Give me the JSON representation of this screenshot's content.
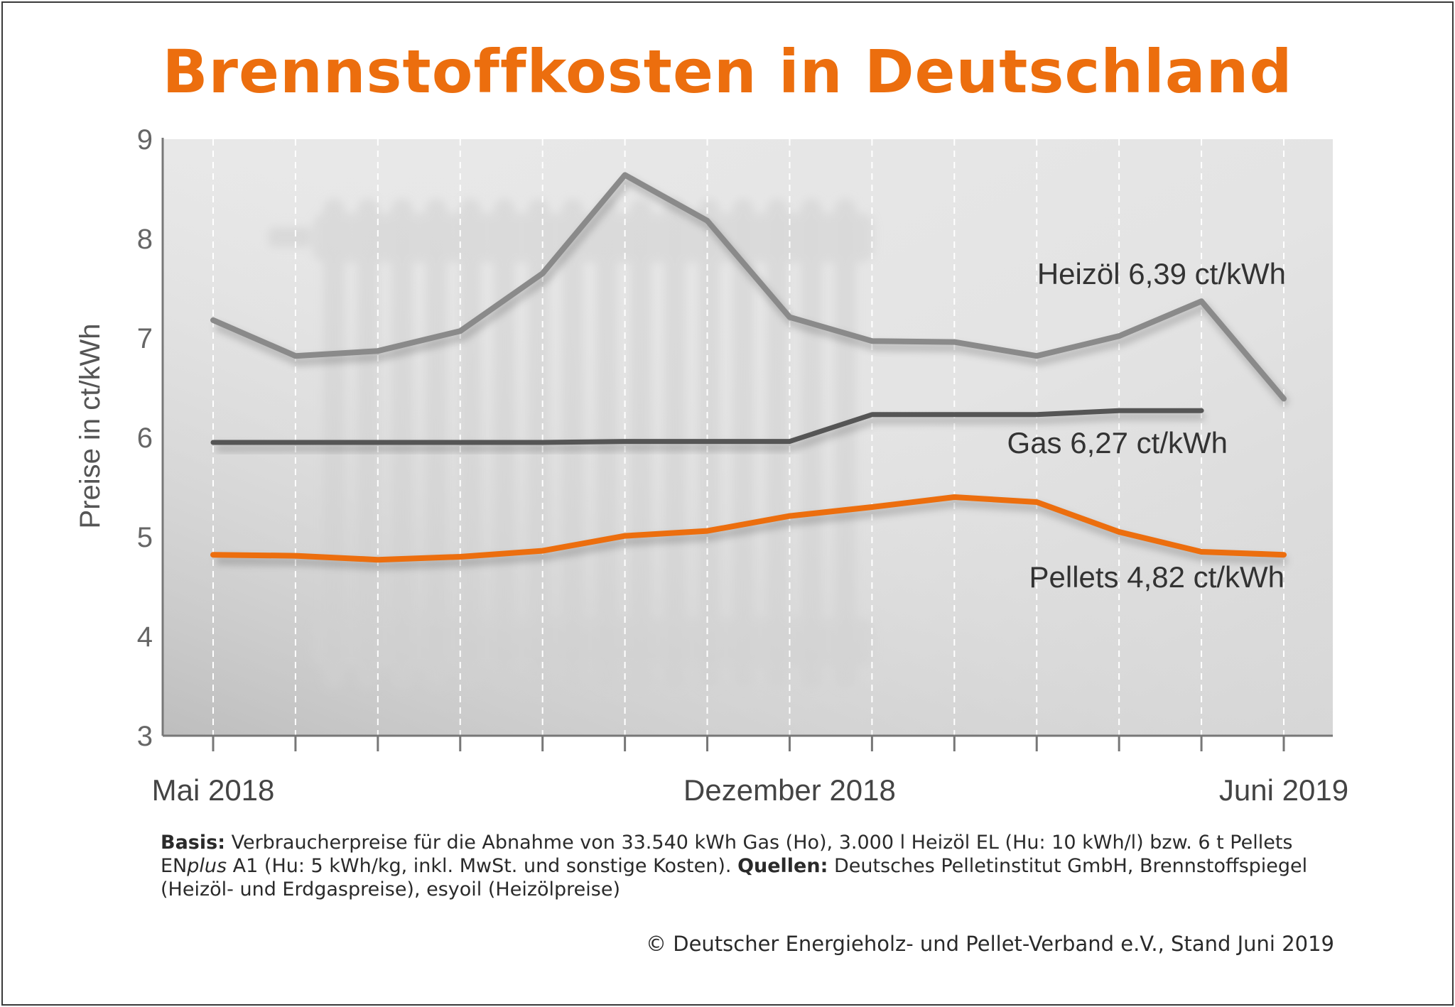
{
  "chart_data": {
    "type": "line",
    "title": "Brennstoffkosten in Deutschland",
    "ylabel": "Preise in ct/kWh",
    "ylim": [
      3,
      9
    ],
    "yticks": [
      "3",
      "4",
      "5",
      "6",
      "7",
      "8",
      "9"
    ],
    "x_tick_labels": [
      {
        "index": 0,
        "label": "Mai 2018"
      },
      {
        "index": 7,
        "label": "Dezember 2018"
      },
      {
        "index": 13,
        "label": "Juni 2019"
      }
    ],
    "x_count": 14,
    "grid": "vertical dashed",
    "series": [
      {
        "name": "Heizöl",
        "color": "#8a8a8a",
        "values": [
          7.18,
          6.82,
          6.87,
          7.07,
          7.65,
          8.64,
          8.18,
          7.21,
          6.97,
          6.96,
          6.82,
          7.02,
          7.37,
          6.39
        ]
      },
      {
        "name": "Gas",
        "color": "#555555",
        "values": [
          5.95,
          5.95,
          5.95,
          5.95,
          5.95,
          5.96,
          5.96,
          5.96,
          6.23,
          6.23,
          6.23,
          6.27,
          6.27,
          null
        ]
      },
      {
        "name": "Pellets",
        "color": "#ec6e0e",
        "values": [
          4.82,
          4.81,
          4.77,
          4.8,
          4.86,
          5.01,
          5.06,
          5.21,
          5.3,
          5.4,
          5.35,
          5.05,
          4.85,
          4.82
        ]
      }
    ],
    "annotations": [
      {
        "series": "Heizöl",
        "label": "Heizöl",
        "value_text": "6,39 ct/kWh"
      },
      {
        "series": "Gas",
        "label": "Gas",
        "value_text": "6,27 ct/kWh"
      },
      {
        "series": "Pellets",
        "label": "Pellets",
        "value_text": "4,82 ct/kWh"
      }
    ]
  },
  "footnote": {
    "basis_label": "Basis:",
    "basis_text_1": " Verbraucherpreise für die Abnahme von 33.540 kWh Gas (Ho), 3.000 l Heizöl EL (Hu: 10 kWh/l) bzw. 6 t Pellets EN",
    "basis_italic": "plus",
    "basis_text_2": " A1 (Hu: 5 kWh/kg, inkl. MwSt. und sonstige Kosten). ",
    "quellen_label": "Quellen:",
    "quellen_text": " Deutsches Pelletinstitut GmbH, Brennstoffspiegel (Heizöl- und Erdgaspreise), esyoil (Heizölpreise)"
  },
  "copyright": "© Deutscher Energieholz- und Pellet-Verband e.V., Stand Juni 2019"
}
